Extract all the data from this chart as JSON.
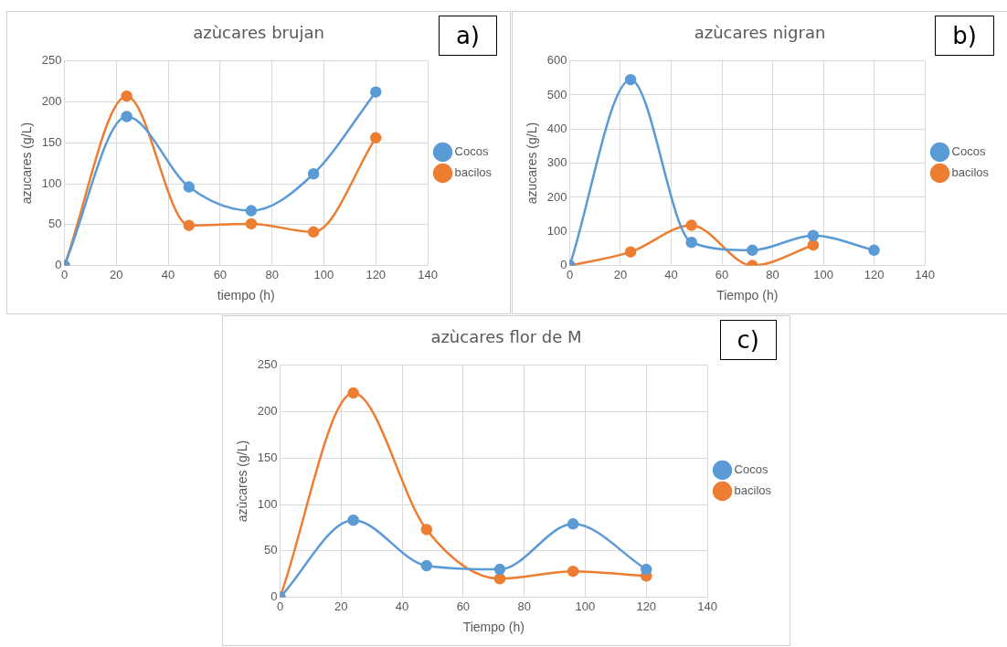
{
  "chart_data": [
    {
      "type": "line",
      "title": "azùcares brujan",
      "xlabel": "tiempo (h)",
      "ylabel": "azucares (g/L)",
      "annotations": [
        "a)"
      ],
      "x": [
        0,
        24,
        48,
        72,
        96,
        120
      ],
      "xlim": [
        0,
        140
      ],
      "xticks": [
        0,
        20,
        40,
        60,
        80,
        100,
        120,
        140
      ],
      "ylim": [
        0,
        250
      ],
      "yticks": [
        0,
        50,
        100,
        150,
        200,
        250
      ],
      "grid": true,
      "legend": "right",
      "marker": "circle",
      "series": [
        {
          "name": "Cocos",
          "color": "#5b9bd5",
          "values": [
            0,
            182,
            96,
            67,
            112,
            212
          ]
        },
        {
          "name": "bacilos",
          "color": "#ed7d31",
          "values": [
            0,
            207,
            49,
            51,
            41,
            156
          ]
        }
      ]
    },
    {
      "type": "line",
      "title": "azùcares nigran",
      "xlabel": "Tiempo (h)",
      "ylabel": "azucares (g/L)",
      "annotations": [
        "b)"
      ],
      "x": [
        0,
        24,
        48,
        72,
        96,
        120
      ],
      "xlim": [
        0,
        140
      ],
      "xticks": [
        0,
        20,
        40,
        60,
        80,
        100,
        120,
        140
      ],
      "ylim": [
        0,
        600
      ],
      "yticks": [
        0,
        100,
        200,
        300,
        400,
        500,
        600
      ],
      "grid": true,
      "legend": "right",
      "marker": "circle",
      "series": [
        {
          "name": "Cocos",
          "color": "#5b9bd5",
          "values": [
            0,
            545,
            68,
            45,
            88,
            45
          ]
        },
        {
          "name": "bacilos",
          "color": "#ed7d31",
          "x": [
            0,
            24,
            48,
            72,
            96
          ],
          "values": [
            0,
            40,
            118,
            0,
            60
          ]
        }
      ]
    },
    {
      "type": "line",
      "title": "azùcares flor de M",
      "xlabel": "Tiempo (h)",
      "ylabel": "azùcares (g/L)",
      "annotations": [
        "c)"
      ],
      "x": [
        0,
        24,
        48,
        72,
        96,
        120
      ],
      "xlim": [
        0,
        140
      ],
      "xticks": [
        0,
        20,
        40,
        60,
        80,
        100,
        120,
        140
      ],
      "ylim": [
        0,
        250
      ],
      "yticks": [
        0,
        50,
        100,
        150,
        200,
        250
      ],
      "grid": true,
      "legend": "right",
      "marker": "circle",
      "series": [
        {
          "name": "Cocos",
          "color": "#5b9bd5",
          "values": [
            0,
            83,
            34,
            30,
            79,
            30
          ]
        },
        {
          "name": "bacilos",
          "color": "#ed7d31",
          "values": [
            0,
            220,
            73,
            20,
            28,
            23
          ]
        }
      ]
    }
  ]
}
